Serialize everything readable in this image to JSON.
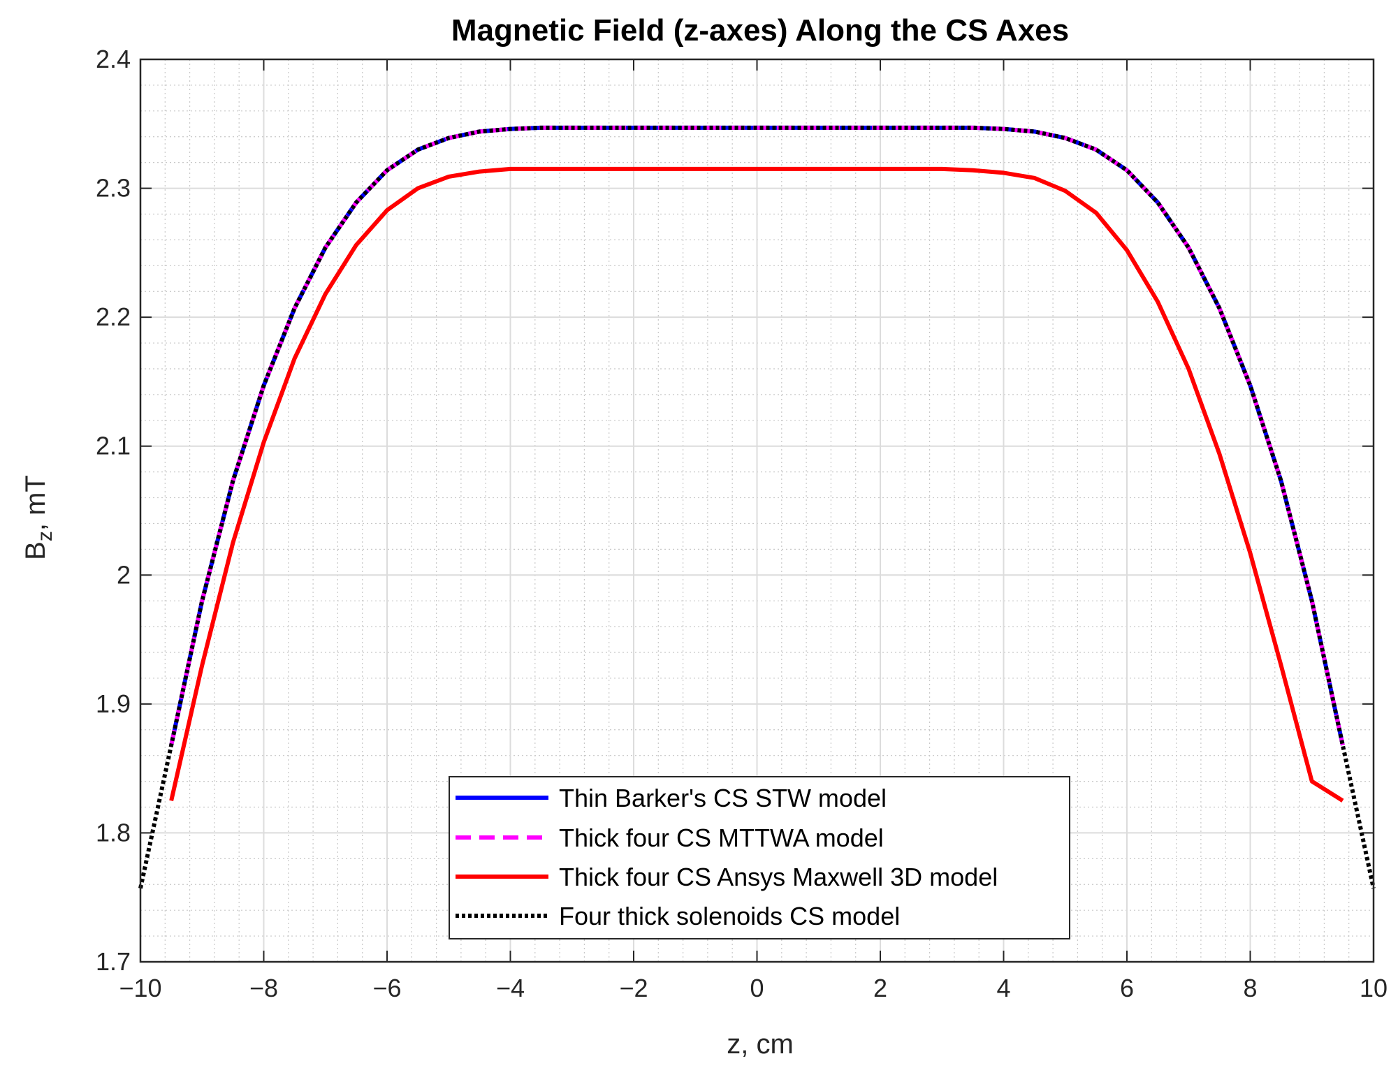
{
  "chart_data": {
    "type": "line",
    "title": "Magnetic Field (z-axes) Along the CS Axes",
    "xlabel": "z, cm",
    "ylabel_main": "B",
    "ylabel_sub": "z",
    "ylabel_rest": ", mT",
    "xlim": [
      -10,
      10
    ],
    "ylim": [
      1.7,
      2.4
    ],
    "xticks": [
      -10,
      -8,
      -6,
      -4,
      -2,
      0,
      2,
      4,
      6,
      8,
      10
    ],
    "xtick_labels": [
      "−10",
      "−8",
      "−6",
      "−4",
      "−2",
      "0",
      "2",
      "4",
      "6",
      "8",
      "10"
    ],
    "yticks": [
      1.7,
      1.8,
      1.9,
      2.0,
      2.1,
      2.2,
      2.3,
      2.4
    ],
    "ytick_labels": [
      "1.7",
      "1.8",
      "1.9",
      "2",
      "2.1",
      "2.2",
      "2.3",
      "2.4"
    ],
    "grid": true,
    "minor_grid": true,
    "legend_position": "bottom-center",
    "series": [
      {
        "name": "Thin Barker's CS STW model",
        "color": "#0000ff",
        "style": "solid",
        "x": [
          -9.5,
          -9.0,
          -8.5,
          -8.0,
          -7.5,
          -7.0,
          -6.5,
          -6.0,
          -5.5,
          -5.0,
          -4.5,
          -4.0,
          -3.5,
          -3.0,
          -2.0,
          -1.0,
          0,
          1.0,
          2.0,
          3.0,
          3.5,
          4.0,
          4.5,
          5.0,
          5.5,
          6.0,
          6.5,
          7.0,
          7.5,
          8.0,
          8.5,
          9.0,
          9.5
        ],
        "y": [
          1.868,
          1.98,
          2.073,
          2.147,
          2.207,
          2.254,
          2.289,
          2.314,
          2.33,
          2.339,
          2.344,
          2.346,
          2.347,
          2.347,
          2.347,
          2.347,
          2.347,
          2.347,
          2.347,
          2.347,
          2.347,
          2.346,
          2.344,
          2.339,
          2.33,
          2.314,
          2.289,
          2.254,
          2.207,
          2.147,
          2.073,
          1.98,
          1.868
        ]
      },
      {
        "name": "Thick four CS MTTWA model",
        "color": "#ff00ff",
        "style": "dashed",
        "x": [
          -9.5,
          -9.0,
          -8.5,
          -8.0,
          -7.5,
          -7.0,
          -6.5,
          -6.0,
          -5.5,
          -5.0,
          -4.5,
          -4.0,
          -3.5,
          -3.0,
          -2.0,
          -1.0,
          0,
          1.0,
          2.0,
          3.0,
          3.5,
          4.0,
          4.5,
          5.0,
          5.5,
          6.0,
          6.5,
          7.0,
          7.5,
          8.0,
          8.5,
          9.0,
          9.5
        ],
        "y": [
          1.868,
          1.98,
          2.073,
          2.147,
          2.207,
          2.254,
          2.289,
          2.314,
          2.33,
          2.339,
          2.344,
          2.346,
          2.347,
          2.347,
          2.347,
          2.347,
          2.347,
          2.347,
          2.347,
          2.347,
          2.347,
          2.346,
          2.344,
          2.339,
          2.33,
          2.314,
          2.289,
          2.254,
          2.207,
          2.147,
          2.073,
          1.98,
          1.868
        ]
      },
      {
        "name": "Thick four CS Ansys Maxwell 3D model",
        "color": "#ff0000",
        "style": "solid",
        "x": [
          -9.5,
          -9.0,
          -8.5,
          -8.0,
          -7.5,
          -7.0,
          -6.5,
          -6.0,
          -5.5,
          -5.0,
          -4.5,
          -4.0,
          -3.5,
          -3.0,
          -2.0,
          -1.0,
          0,
          1.0,
          2.0,
          3.0,
          3.5,
          4.0,
          4.5,
          5.0,
          5.5,
          6.0,
          6.5,
          7.0,
          7.5,
          8.0,
          8.5,
          9.0,
          9.5
        ],
        "y": [
          1.825,
          1.93,
          2.025,
          2.103,
          2.168,
          2.218,
          2.256,
          2.283,
          2.3,
          2.309,
          2.313,
          2.315,
          2.315,
          2.315,
          2.315,
          2.315,
          2.315,
          2.315,
          2.315,
          2.315,
          2.314,
          2.312,
          2.308,
          2.298,
          2.281,
          2.252,
          2.212,
          2.16,
          2.094,
          2.017,
          1.93,
          1.84,
          1.825
        ]
      },
      {
        "name": "Four thick solenoids CS model",
        "color": "#000000",
        "style": "dotted",
        "x": [
          -10.0,
          -9.5,
          -9.0,
          -8.5,
          -8.0,
          -7.5,
          -7.0,
          -6.5,
          -6.0,
          -5.5,
          -5.0,
          -4.5,
          -4.0,
          -3.5,
          -3.0,
          -2.0,
          -1.0,
          0,
          1.0,
          2.0,
          3.0,
          3.5,
          4.0,
          4.5,
          5.0,
          5.5,
          6.0,
          6.5,
          7.0,
          7.5,
          8.0,
          8.5,
          9.0,
          9.5,
          10.0
        ],
        "y": [
          1.757,
          1.868,
          1.98,
          2.073,
          2.147,
          2.207,
          2.254,
          2.289,
          2.314,
          2.33,
          2.339,
          2.344,
          2.346,
          2.347,
          2.347,
          2.347,
          2.347,
          2.347,
          2.347,
          2.347,
          2.347,
          2.347,
          2.346,
          2.344,
          2.339,
          2.33,
          2.314,
          2.289,
          2.254,
          2.207,
          2.147,
          2.073,
          1.98,
          1.868,
          1.757
        ]
      }
    ]
  }
}
